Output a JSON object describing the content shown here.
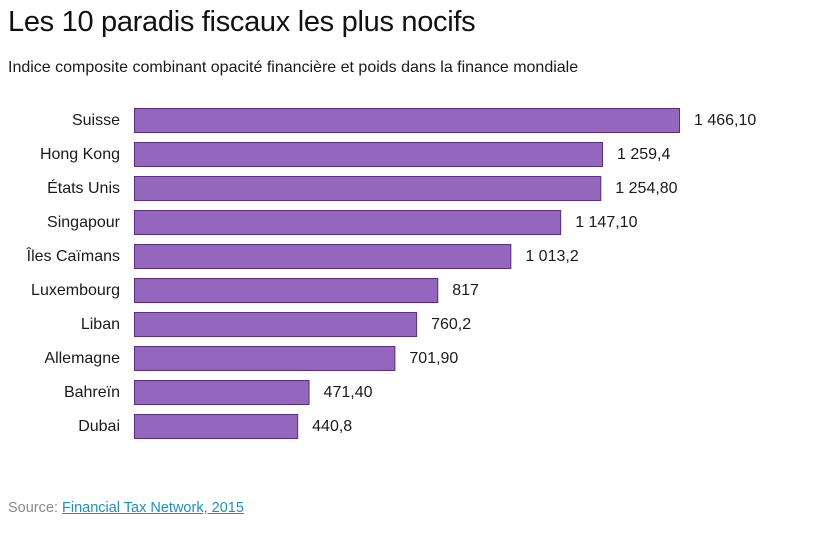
{
  "chart_data": {
    "type": "bar",
    "orientation": "horizontal",
    "title": "Les 10 paradis fiscaux les plus nocifs",
    "subtitle": "Indice composite combinant opacité financière et poids dans la finance mondiale",
    "categories": [
      "Suisse",
      "Hong Kong",
      "États Unis",
      "Singapour",
      "Îles Caïmans",
      "Luxembourg",
      "Liban",
      "Allemagne",
      "Bahreïn",
      "Dubai"
    ],
    "values": [
      1466.1,
      1259.4,
      1254.8,
      1147.1,
      1013.2,
      817,
      760.2,
      701.9,
      471.4,
      440.8
    ],
    "value_labels": [
      "1 466,10",
      "1 259,4",
      "1 254,80",
      "1 147,10",
      "1 013,2",
      "817",
      "760,2",
      "701,90",
      "471,40",
      "440,8"
    ],
    "xlim": [
      0,
      1466.1
    ],
    "grid": false,
    "legend": "none",
    "colors": {
      "bar_fill": "#9466be",
      "bar_stroke": "#5a2d82"
    }
  },
  "source": {
    "prefix": "Source: ",
    "link_text": "Financial Tax Network, 2015"
  }
}
